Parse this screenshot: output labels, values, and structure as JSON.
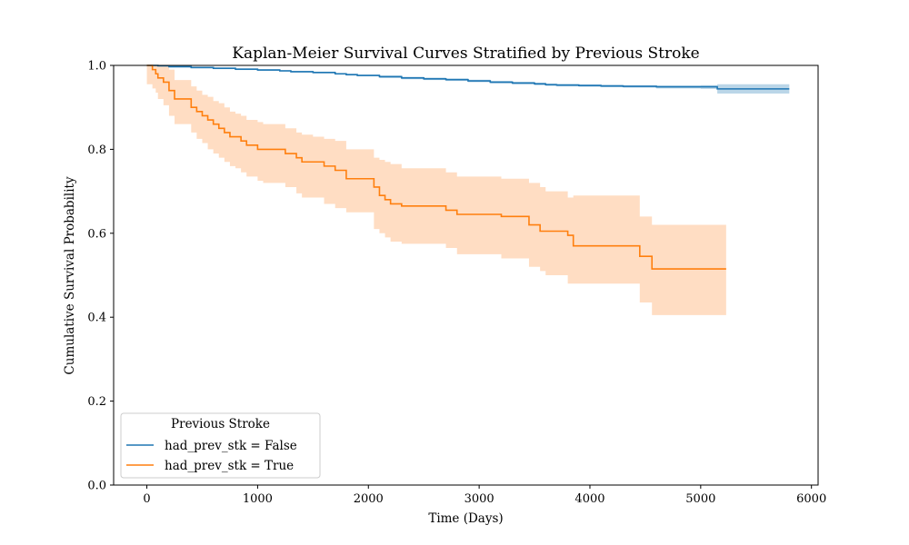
{
  "chart_data": {
    "type": "line",
    "title": "Kaplan-Meier Survival Curves Stratified by Previous Stroke",
    "xlabel": "Time (Days)",
    "ylabel": "Cumulative Survival Probability",
    "xlim": [
      -300,
      6060
    ],
    "ylim": [
      0.0,
      1.0
    ],
    "xticks": [
      0,
      1000,
      2000,
      3000,
      4000,
      5000,
      6000
    ],
    "xtick_labels": [
      "0",
      "1000",
      "2000",
      "3000",
      "4000",
      "5000",
      "6000"
    ],
    "yticks": [
      0.0,
      0.2,
      0.4,
      0.6,
      0.8,
      1.0
    ],
    "ytick_labels": [
      "0.0",
      "0.2",
      "0.4",
      "0.6",
      "0.8",
      "1.0"
    ],
    "grid": false,
    "legend": {
      "title": "Previous Stroke",
      "placement": "lower-left"
    },
    "step": true,
    "series": [
      {
        "name": "had_prev_stk = False",
        "color": "#1f77b4",
        "band_color": "#1f77b4",
        "x": [
          0,
          100,
          200,
          400,
          600,
          800,
          1000,
          1200,
          1300,
          1500,
          1700,
          1800,
          1900,
          2100,
          2300,
          2500,
          2700,
          2900,
          3100,
          3300,
          3500,
          3600,
          3700,
          3900,
          4100,
          4300,
          4600,
          4800,
          5000,
          5150,
          5800
        ],
        "y": [
          1.0,
          0.999,
          0.997,
          0.995,
          0.993,
          0.991,
          0.989,
          0.987,
          0.985,
          0.983,
          0.98,
          0.978,
          0.976,
          0.973,
          0.97,
          0.968,
          0.966,
          0.963,
          0.96,
          0.958,
          0.956,
          0.954,
          0.953,
          0.952,
          0.951,
          0.95,
          0.949,
          0.949,
          0.949,
          0.944,
          0.944
        ],
        "lower": [
          0.998,
          0.997,
          0.995,
          0.993,
          0.991,
          0.989,
          0.987,
          0.985,
          0.983,
          0.981,
          0.978,
          0.976,
          0.974,
          0.97,
          0.967,
          0.965,
          0.963,
          0.96,
          0.957,
          0.955,
          0.953,
          0.951,
          0.95,
          0.949,
          0.948,
          0.947,
          0.945,
          0.945,
          0.944,
          0.933,
          0.933
        ],
        "upper": [
          1.0,
          1.0,
          0.999,
          0.997,
          0.995,
          0.993,
          0.991,
          0.989,
          0.987,
          0.985,
          0.982,
          0.98,
          0.978,
          0.976,
          0.973,
          0.971,
          0.969,
          0.966,
          0.963,
          0.961,
          0.959,
          0.957,
          0.956,
          0.955,
          0.954,
          0.953,
          0.952,
          0.952,
          0.953,
          0.955,
          0.955
        ]
      },
      {
        "name": "had_prev_stk = True",
        "color": "#ff7f0e",
        "band_color": "#ffbb88",
        "x": [
          0,
          50,
          80,
          100,
          150,
          200,
          250,
          300,
          400,
          450,
          500,
          550,
          600,
          650,
          700,
          750,
          800,
          850,
          900,
          1000,
          1050,
          1100,
          1250,
          1350,
          1400,
          1500,
          1600,
          1700,
          1800,
          2050,
          2100,
          2150,
          2200,
          2300,
          2700,
          2800,
          3200,
          3450,
          3550,
          3600,
          3800,
          3850,
          4450,
          4500,
          4560,
          5230
        ],
        "y": [
          1.0,
          0.99,
          0.98,
          0.97,
          0.96,
          0.94,
          0.92,
          0.92,
          0.9,
          0.89,
          0.88,
          0.87,
          0.86,
          0.85,
          0.84,
          0.83,
          0.83,
          0.82,
          0.81,
          0.8,
          0.8,
          0.8,
          0.79,
          0.78,
          0.77,
          0.77,
          0.76,
          0.75,
          0.73,
          0.71,
          0.69,
          0.68,
          0.67,
          0.665,
          0.655,
          0.645,
          0.64,
          0.62,
          0.605,
          0.605,
          0.595,
          0.57,
          0.545,
          0.545,
          0.515,
          0.515
        ],
        "lower": [
          0.955,
          0.945,
          0.935,
          0.92,
          0.905,
          0.88,
          0.86,
          0.86,
          0.84,
          0.825,
          0.815,
          0.8,
          0.79,
          0.78,
          0.77,
          0.76,
          0.755,
          0.745,
          0.735,
          0.725,
          0.72,
          0.72,
          0.71,
          0.695,
          0.685,
          0.685,
          0.67,
          0.66,
          0.65,
          0.61,
          0.6,
          0.59,
          0.58,
          0.575,
          0.565,
          0.55,
          0.54,
          0.52,
          0.51,
          0.5,
          0.48,
          0.48,
          0.435,
          0.435,
          0.405,
          0.405
        ],
        "upper": [
          1.0,
          1.0,
          1.0,
          1.0,
          1.0,
          0.99,
          0.965,
          0.965,
          0.95,
          0.94,
          0.93,
          0.925,
          0.915,
          0.91,
          0.9,
          0.89,
          0.885,
          0.88,
          0.87,
          0.865,
          0.86,
          0.86,
          0.85,
          0.84,
          0.835,
          0.83,
          0.825,
          0.82,
          0.8,
          0.78,
          0.775,
          0.77,
          0.765,
          0.755,
          0.745,
          0.735,
          0.73,
          0.72,
          0.71,
          0.7,
          0.685,
          0.69,
          0.64,
          0.64,
          0.62,
          0.62
        ]
      }
    ]
  }
}
